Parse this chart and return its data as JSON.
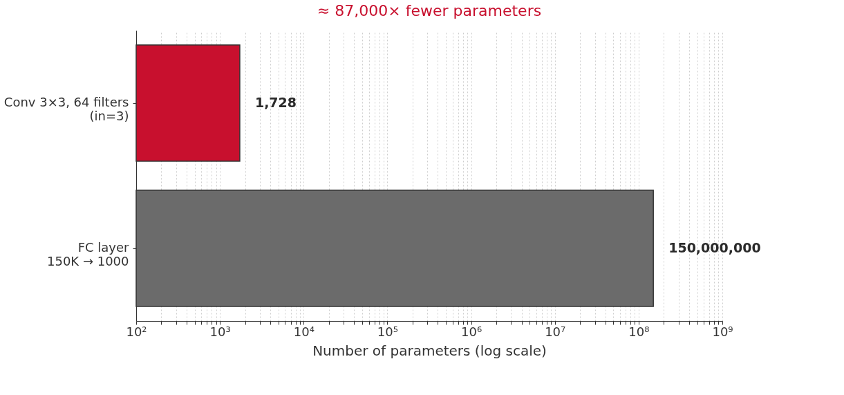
{
  "chart_data": {
    "type": "bar",
    "orientation": "horizontal",
    "log": "x",
    "title": "≈ 87,000× fewer parameters",
    "xlabel": "Number of parameters (log scale)",
    "categories": [
      "Conv 3×3, 64 filters\n(in=3)",
      "FC layer\n150K → 1000"
    ],
    "values": [
      1728,
      150000000
    ],
    "colors": [
      "#c8102e",
      "#6b6b6b"
    ],
    "value_labels": [
      "1,728",
      "150,000,000"
    ],
    "xlim": [
      100,
      1000000000
    ],
    "xticks": [
      {
        "value": 100,
        "label": "10²"
      },
      {
        "value": 200,
        "label": null
      },
      {
        "value": 300,
        "label": null
      },
      {
        "value": 400,
        "label": null
      },
      {
        "value": 500,
        "label": null
      },
      {
        "value": 600,
        "label": null
      },
      {
        "value": 700,
        "label": null
      },
      {
        "value": 800,
        "label": null
      },
      {
        "value": 900,
        "label": null
      },
      {
        "value": 1000,
        "label": "10³"
      },
      {
        "value": 2000,
        "label": null
      },
      {
        "value": 3000,
        "label": null
      },
      {
        "value": 4000,
        "label": null
      },
      {
        "value": 5000,
        "label": null
      },
      {
        "value": 6000,
        "label": null
      },
      {
        "value": 7000,
        "label": null
      },
      {
        "value": 8000,
        "label": null
      },
      {
        "value": 9000,
        "label": null
      },
      {
        "value": 10000,
        "label": "10⁴"
      },
      {
        "value": 20000,
        "label": null
      },
      {
        "value": 30000,
        "label": null
      },
      {
        "value": 40000,
        "label": null
      },
      {
        "value": 50000,
        "label": null
      },
      {
        "value": 60000,
        "label": null
      },
      {
        "value": 70000,
        "label": null
      },
      {
        "value": 80000,
        "label": null
      },
      {
        "value": 90000,
        "label": null
      },
      {
        "value": 100000,
        "label": "10⁵"
      },
      {
        "value": 200000,
        "label": null
      },
      {
        "value": 300000,
        "label": null
      },
      {
        "value": 400000,
        "label": null
      },
      {
        "value": 500000,
        "label": null
      },
      {
        "value": 600000,
        "label": null
      },
      {
        "value": 700000,
        "label": null
      },
      {
        "value": 800000,
        "label": null
      },
      {
        "value": 900000,
        "label": null
      },
      {
        "value": 1000000,
        "label": "10⁶"
      },
      {
        "value": 2000000,
        "label": null
      },
      {
        "value": 3000000,
        "label": null
      },
      {
        "value": 4000000,
        "label": null
      },
      {
        "value": 5000000,
        "label": null
      },
      {
        "value": 6000000,
        "label": null
      },
      {
        "value": 7000000,
        "label": null
      },
      {
        "value": 8000000,
        "label": null
      },
      {
        "value": 9000000,
        "label": null
      },
      {
        "value": 10000000,
        "label": "10⁷"
      },
      {
        "value": 20000000,
        "label": null
      },
      {
        "value": 30000000,
        "label": null
      },
      {
        "value": 40000000,
        "label": null
      },
      {
        "value": 50000000,
        "label": null
      },
      {
        "value": 60000000,
        "label": null
      },
      {
        "value": 70000000,
        "label": null
      },
      {
        "value": 80000000,
        "label": null
      },
      {
        "value": 90000000,
        "label": null
      },
      {
        "value": 100000000,
        "label": "10⁸"
      },
      {
        "value": 200000000,
        "label": null
      },
      {
        "value": 300000000,
        "label": null
      },
      {
        "value": 400000000,
        "label": null
      },
      {
        "value": 500000000,
        "label": null
      },
      {
        "value": 600000000,
        "label": null
      },
      {
        "value": 700000000,
        "label": null
      },
      {
        "value": 800000000,
        "label": null
      },
      {
        "value": 900000000,
        "label": null
      },
      {
        "value": 1000000000,
        "label": "10⁹"
      }
    ],
    "grid": "x"
  }
}
